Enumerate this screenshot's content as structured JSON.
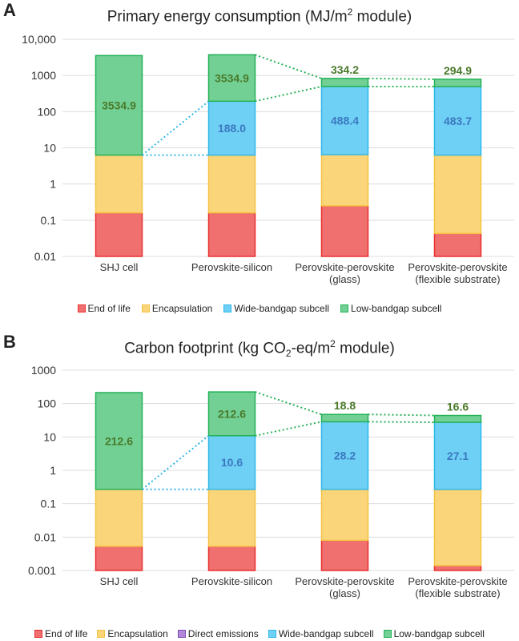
{
  "colors": {
    "end_of_life": {
      "fill": "#f07070",
      "stroke": "#e8302f"
    },
    "encapsulation": {
      "fill": "#fad57a",
      "stroke": "#f5c342"
    },
    "direct_emissions": {
      "fill": "#b088d8",
      "stroke": "#7f4fb8"
    },
    "wide_bandgap": {
      "fill": "#6fd0f5",
      "stroke": "#2fb7ea"
    },
    "low_bandgap": {
      "fill": "#72d095",
      "stroke": "#24b257"
    },
    "wide_label": "#3a78c0",
    "low_label": "#4a7a2a",
    "connector": "#2fb7ea",
    "connector_green": "#24b257"
  },
  "chart_data": [
    {
      "type": "bar",
      "stacked": true,
      "log_scale": true,
      "panel": "A",
      "title_prefix": "Primary energy consumption (MJ/m",
      "title_sup": "2",
      "title_suffix": " module)",
      "ylim": [
        0.01,
        10000
      ],
      "y_ticks": [
        "10,000",
        "1000",
        "100",
        "10",
        "1",
        "0.1",
        "0.01"
      ],
      "y_tick_values": [
        10000,
        1000,
        100,
        10,
        1,
        0.1,
        0.01
      ],
      "grid": true,
      "categories": [
        [
          "SHJ cell"
        ],
        [
          "Perovskite-silicon"
        ],
        [
          "Perovskite-perovskite",
          "(glass)"
        ],
        [
          "Perovskite-perovskite",
          "(flexible substrate)"
        ]
      ],
      "stack_tops": {
        "End of life": [
          0.16,
          0.16,
          0.25,
          0.043
        ],
        "Encapsulation": [
          6.3,
          6.3,
          6.5,
          6.3
        ],
        "Wide-bandgap subcell": [
          null,
          194,
          495,
          490
        ],
        "Low-bandgap subcell": [
          3541,
          3729,
          829,
          785
        ]
      },
      "value_labels": {
        "Wide-bandgap subcell": [
          "",
          "188.0",
          "488.4",
          "483.7"
        ],
        "Low-bandgap subcell": [
          "3534.9",
          "3534.9",
          "334.2",
          "294.9"
        ]
      },
      "legend": [
        "End of life",
        "Encapsulation",
        "Wide-bandgap subcell",
        "Low-bandgap subcell"
      ]
    },
    {
      "type": "bar",
      "stacked": true,
      "log_scale": true,
      "panel": "B",
      "title_prefix": "Carbon footprint (kg CO",
      "title_sub": "2",
      "title_mid": "-eq/m",
      "title_sup": "2",
      "title_suffix": " module)",
      "ylim": [
        0.001,
        1000
      ],
      "y_ticks": [
        "1000",
        "100",
        "10",
        "1",
        "0.1",
        "0.01",
        "0.001"
      ],
      "y_tick_values": [
        1000,
        100,
        10,
        1,
        0.1,
        0.01,
        0.001
      ],
      "grid": true,
      "categories": [
        [
          "SHJ cell"
        ],
        [
          "Perovskite-silicon"
        ],
        [
          "Perovskite-perovskite",
          "(glass)"
        ],
        [
          "Perovskite-perovskite",
          "(flexible substrate)"
        ]
      ],
      "stack_tops": {
        "End of life": [
          0.0053,
          0.0053,
          0.008,
          0.0014
        ],
        "Encapsulation": [
          0.27,
          0.27,
          0.27,
          0.27
        ],
        "Wide-bandgap subcell": [
          null,
          10.9,
          28.5,
          27.4
        ],
        "Low-bandgap subcell": [
          212.9,
          223.5,
          47.3,
          44.0
        ]
      },
      "value_labels": {
        "Wide-bandgap subcell": [
          "",
          "10.6",
          "28.2",
          "27.1"
        ],
        "Low-bandgap subcell": [
          "212.6",
          "212.6",
          "18.8",
          "16.6"
        ]
      },
      "legend": [
        "End of life",
        "Encapsulation",
        "Direct emissions",
        "Wide-bandgap subcell",
        "Low-bandgap subcell"
      ]
    }
  ],
  "panels": {
    "a": {
      "letter": "A"
    },
    "b": {
      "letter": "B"
    }
  }
}
